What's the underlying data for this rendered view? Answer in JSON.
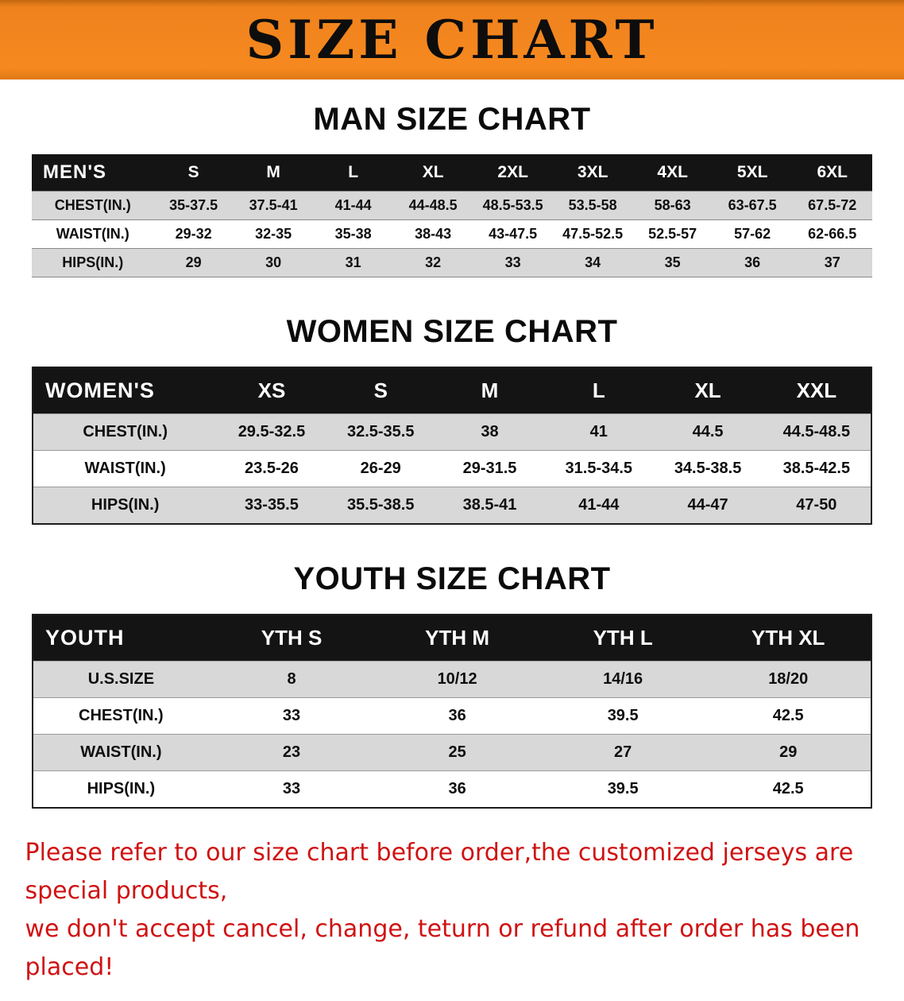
{
  "banner": {
    "title": "SIZE CHART",
    "background_color": "#F6891F",
    "text_color": "#0D0D0D"
  },
  "sections": [
    {
      "id": "men",
      "heading": "MAN SIZE CHART",
      "table": {
        "header": [
          "MEN'S",
          "S",
          "M",
          "L",
          "XL",
          "2XL",
          "3XL",
          "4XL",
          "5XL",
          "6XL"
        ],
        "rows": [
          [
            "CHEST(IN.)",
            "35-37.5",
            "37.5-41",
            "41-44",
            "44-48.5",
            "48.5-53.5",
            "53.5-58",
            "58-63",
            "63-67.5",
            "67.5-72"
          ],
          [
            "WAIST(IN.)",
            "29-32",
            "32-35",
            "35-38",
            "38-43",
            "43-47.5",
            "47.5-52.5",
            "52.5-57",
            "57-62",
            "62-66.5"
          ],
          [
            "HIPS(IN.)",
            "29",
            "30",
            "31",
            "32",
            "33",
            "34",
            "35",
            "36",
            "37"
          ]
        ]
      }
    },
    {
      "id": "women",
      "heading": "WOMEN SIZE CHART",
      "table": {
        "header": [
          "WOMEN'S",
          "XS",
          "S",
          "M",
          "L",
          "XL",
          "XXL"
        ],
        "rows": [
          [
            "CHEST(IN.)",
            "29.5-32.5",
            "32.5-35.5",
            "38",
            "41",
            "44.5",
            "44.5-48.5"
          ],
          [
            "WAIST(IN.)",
            "23.5-26",
            "26-29",
            "29-31.5",
            "31.5-34.5",
            "34.5-38.5",
            "38.5-42.5"
          ],
          [
            "HIPS(IN.)",
            "33-35.5",
            "35.5-38.5",
            "38.5-41",
            "41-44",
            "44-47",
            "47-50"
          ]
        ]
      }
    },
    {
      "id": "youth",
      "heading": "YOUTH SIZE CHART",
      "table": {
        "header": [
          "YOUTH",
          "YTH S",
          "YTH M",
          "YTH L",
          "YTH XL"
        ],
        "rows": [
          [
            "U.S.SIZE",
            "8",
            "10/12",
            "14/16",
            "18/20"
          ],
          [
            "CHEST(IN.)",
            "33",
            "36",
            "39.5",
            "42.5"
          ],
          [
            "WAIST(IN.)",
            "23",
            "25",
            "27",
            "29"
          ],
          [
            "HIPS(IN.)",
            "33",
            "36",
            "39.5",
            "42.5"
          ]
        ]
      }
    }
  ],
  "disclaimer": {
    "line1": "Please refer to our size chart before order,the customized jerseys are special products,",
    "line2": "we don't accept cancel, change, teturn or refund after order has been placed!",
    "color": "#D01212"
  }
}
